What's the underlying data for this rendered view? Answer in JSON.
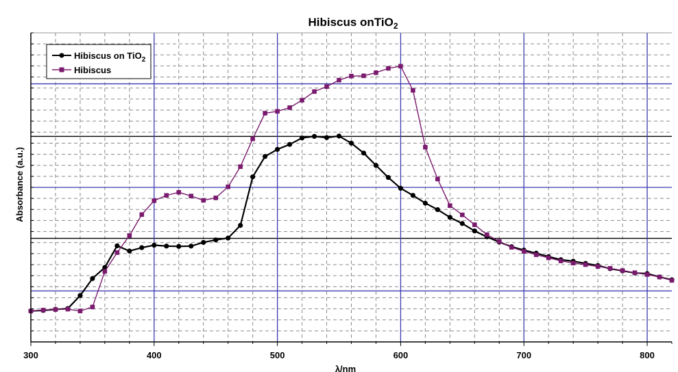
{
  "chart_data": {
    "type": "line",
    "title": "Hibiscus onTiO",
    "title_sub": "2",
    "xlabel": "λ/nm",
    "ylabel": "Absorbance (a.u.)",
    "xlim": [
      300,
      820
    ],
    "x_ticks": [
      300,
      400,
      500,
      600,
      700,
      800
    ],
    "y_range_relative": [
      0,
      1
    ],
    "grid": true,
    "legend_position": "top-left",
    "colors": {
      "series1": "#000000",
      "series2": "#7a1a6e",
      "grid_major": "#3a3ab0",
      "grid_minor": "#8a8a8a",
      "frame": "#000000"
    },
    "series": [
      {
        "name": "Hibiscus on TiO",
        "name_sub": "2",
        "x": [
          300,
          310,
          320,
          330,
          340,
          350,
          360,
          370,
          380,
          390,
          400,
          410,
          420,
          430,
          440,
          450,
          460,
          470,
          480,
          490,
          500,
          510,
          520,
          530,
          540,
          550,
          560,
          570,
          580,
          590,
          600,
          610,
          620,
          630,
          640,
          650,
          660,
          670,
          680,
          690,
          700,
          710,
          720,
          730,
          740,
          750,
          760,
          770,
          780,
          790,
          800,
          810,
          820
        ],
        "y": [
          0.1,
          0.102,
          0.105,
          0.108,
          0.15,
          0.205,
          0.241,
          0.311,
          0.294,
          0.305,
          0.313,
          0.31,
          0.309,
          0.31,
          0.322,
          0.33,
          0.336,
          0.377,
          0.534,
          0.6,
          0.623,
          0.639,
          0.66,
          0.665,
          0.661,
          0.666,
          0.643,
          0.611,
          0.571,
          0.532,
          0.497,
          0.474,
          0.449,
          0.428,
          0.403,
          0.383,
          0.359,
          0.34,
          0.323,
          0.308,
          0.297,
          0.287,
          0.276,
          0.266,
          0.261,
          0.254,
          0.247,
          0.237,
          0.23,
          0.223,
          0.221,
          0.21,
          0.201
        ]
      },
      {
        "name": "Hibiscus",
        "x": [
          300,
          310,
          320,
          330,
          340,
          350,
          360,
          370,
          380,
          390,
          400,
          410,
          420,
          430,
          440,
          450,
          460,
          470,
          480,
          490,
          500,
          510,
          520,
          530,
          540,
          550,
          560,
          570,
          580,
          590,
          600,
          610,
          620,
          630,
          640,
          650,
          660,
          670,
          680,
          690,
          700,
          710,
          720,
          730,
          740,
          750,
          760,
          770,
          780,
          790,
          800,
          810,
          820
        ],
        "y": [
          0.1,
          0.103,
          0.105,
          0.106,
          0.1,
          0.113,
          0.228,
          0.289,
          0.344,
          0.412,
          0.457,
          0.474,
          0.484,
          0.472,
          0.458,
          0.466,
          0.502,
          0.567,
          0.657,
          0.74,
          0.746,
          0.758,
          0.782,
          0.81,
          0.826,
          0.847,
          0.86,
          0.861,
          0.871,
          0.885,
          0.892,
          0.814,
          0.63,
          0.527,
          0.441,
          0.411,
          0.379,
          0.347,
          0.325,
          0.306,
          0.293,
          0.282,
          0.272,
          0.262,
          0.255,
          0.25,
          0.244,
          0.238,
          0.231,
          0.224,
          0.218,
          0.21,
          0.199
        ]
      }
    ]
  }
}
